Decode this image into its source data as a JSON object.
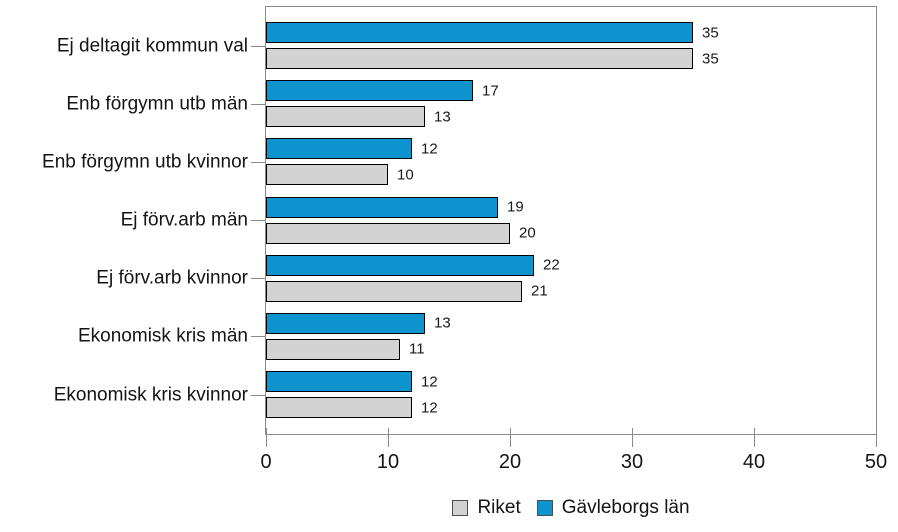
{
  "chart_data": {
    "type": "bar",
    "orientation": "horizontal",
    "title": "",
    "xlabel": "",
    "ylabel": "",
    "xlim": [
      0,
      50
    ],
    "x_ticks": [
      "0",
      "10",
      "20",
      "30",
      "40",
      "50"
    ],
    "grid": false,
    "data_labels": true,
    "legend_position": "bottom",
    "categories": [
      "Ej deltagit kommun val",
      "Enb förgymn utb män",
      "Enb förgymn utb kvinnor",
      "Ej förv.arb män",
      "Ej förv.arb kvinnor",
      "Ekonomisk kris män",
      "Ekonomisk kris kvinnor"
    ],
    "series": [
      {
        "name": "Gävleborgs län",
        "color": "#0d94ce",
        "values": [
          35,
          17,
          12,
          19,
          22,
          13,
          12
        ]
      },
      {
        "name": "Riket",
        "color": "#d3d3d3",
        "values": [
          35,
          13,
          10,
          20,
          21,
          11,
          12
        ]
      }
    ]
  },
  "legend": {
    "items": [
      {
        "label": "Riket",
        "color": "#d3d3d3"
      },
      {
        "label": "Gävleborgs län",
        "color": "#0d94ce"
      }
    ]
  },
  "colors": {
    "bar_border": "#000000",
    "plot_border": "#8a8a8a",
    "text": "#141414",
    "background": "#ffffff"
  }
}
